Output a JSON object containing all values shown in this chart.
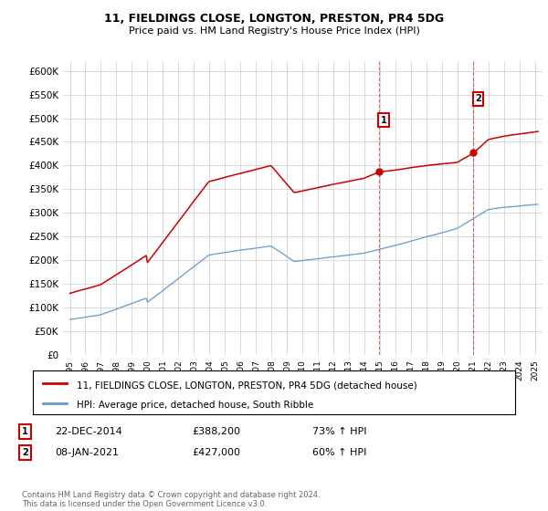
{
  "title": "11, FIELDINGS CLOSE, LONGTON, PRESTON, PR4 5DG",
  "subtitle": "Price paid vs. HM Land Registry's House Price Index (HPI)",
  "legend_line1": "11, FIELDINGS CLOSE, LONGTON, PRESTON, PR4 5DG (detached house)",
  "legend_line2": "HPI: Average price, detached house, South Ribble",
  "annotation1_label": "1",
  "annotation1_date": "22-DEC-2014",
  "annotation1_price": "£388,200",
  "annotation1_hpi": "73% ↑ HPI",
  "annotation2_label": "2",
  "annotation2_date": "08-JAN-2021",
  "annotation2_price": "£427,000",
  "annotation2_hpi": "60% ↑ HPI",
  "footer": "Contains HM Land Registry data © Crown copyright and database right 2024.\nThis data is licensed under the Open Government Licence v3.0.",
  "red_color": "#cc0000",
  "blue_color": "#6699cc",
  "background_color": "#ffffff",
  "grid_color": "#cccccc",
  "ylim": [
    0,
    620000
  ],
  "yticks": [
    0,
    50000,
    100000,
    150000,
    200000,
    250000,
    300000,
    350000,
    400000,
    450000,
    500000,
    550000,
    600000
  ],
  "ytick_labels": [
    "£0",
    "£50K",
    "£100K",
    "£150K",
    "£200K",
    "£250K",
    "£300K",
    "£350K",
    "£400K",
    "£450K",
    "£500K",
    "£550K",
    "£600K"
  ]
}
